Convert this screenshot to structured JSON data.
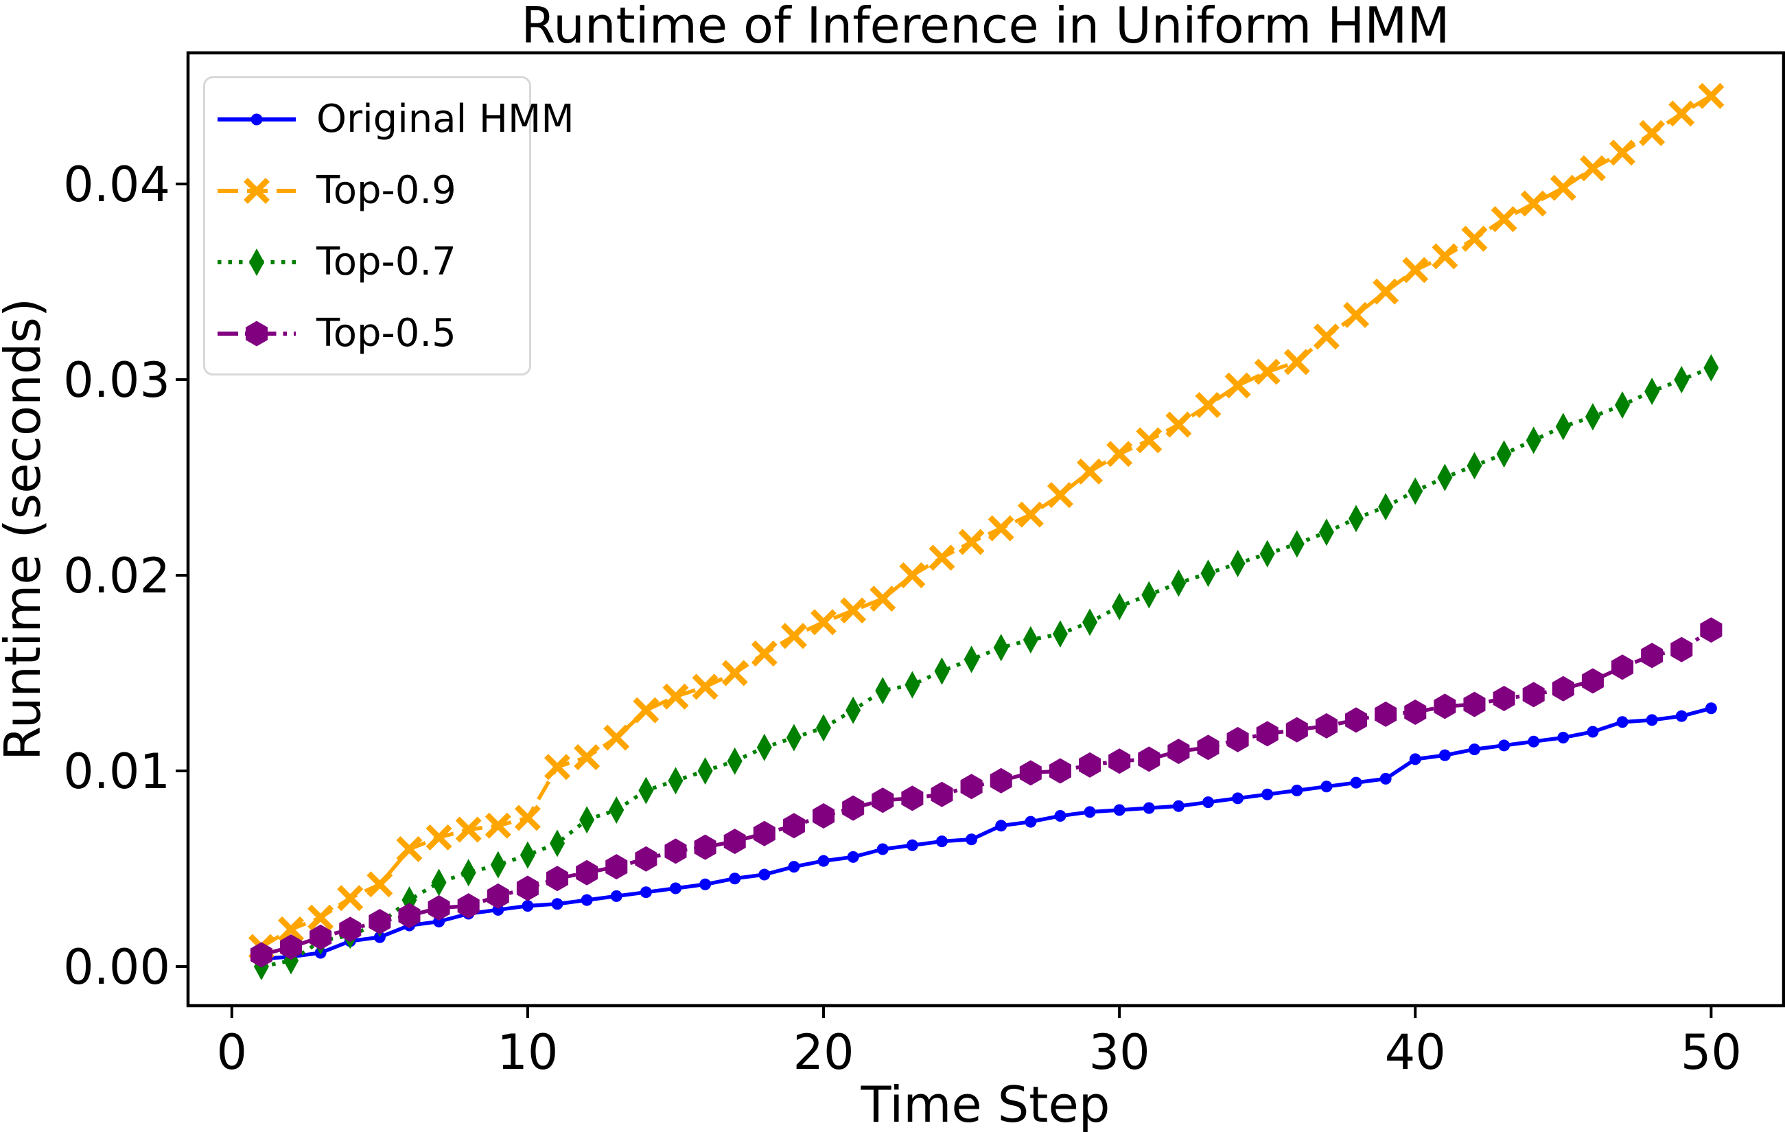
{
  "chart_data": {
    "type": "line",
    "title": "Runtime of Inference in Uniform HMM",
    "xlabel": "Time Step",
    "ylabel": "Runtime (seconds)",
    "xlim": [
      -1.48,
      52.45
    ],
    "ylim": [
      -0.002,
      0.0467
    ],
    "grid": false,
    "legend_position": "upper left",
    "xticks": [
      0,
      10,
      20,
      30,
      40,
      50
    ],
    "xtick_labels": [
      "0",
      "10",
      "20",
      "30",
      "40",
      "50"
    ],
    "yticks": [
      0.0,
      0.01,
      0.02,
      0.03,
      0.04
    ],
    "ytick_labels": [
      "0.00",
      "0.01",
      "0.02",
      "0.03",
      "0.04"
    ],
    "x": [
      1,
      2,
      3,
      4,
      5,
      6,
      7,
      8,
      9,
      10,
      11,
      12,
      13,
      14,
      15,
      16,
      17,
      18,
      19,
      20,
      21,
      22,
      23,
      24,
      25,
      26,
      27,
      28,
      29,
      30,
      31,
      32,
      33,
      34,
      35,
      36,
      37,
      38,
      39,
      40,
      41,
      42,
      43,
      44,
      45,
      46,
      47,
      48,
      49,
      50
    ],
    "series": [
      {
        "name": "Original HMM",
        "color": "#0000ff",
        "linestyle": "solid",
        "marker": "circle",
        "values": [
          0.0004,
          0.0005,
          0.0007,
          0.0013,
          0.0015,
          0.0021,
          0.0023,
          0.0027,
          0.0029,
          0.0031,
          0.0032,
          0.0034,
          0.0036,
          0.0038,
          0.004,
          0.0042,
          0.0045,
          0.0047,
          0.0051,
          0.0054,
          0.0056,
          0.006,
          0.0062,
          0.0064,
          0.0065,
          0.0072,
          0.0074,
          0.0077,
          0.0079,
          0.008,
          0.0081,
          0.0082,
          0.0084,
          0.0086,
          0.0088,
          0.009,
          0.0092,
          0.0094,
          0.0096,
          0.0106,
          0.0108,
          0.0111,
          0.0113,
          0.0115,
          0.0117,
          0.012,
          0.0125,
          0.0126,
          0.0128,
          0.0132
        ]
      },
      {
        "name": "Top-0.9",
        "color": "#ffa500",
        "linestyle": "dashed",
        "marker": "x",
        "values": [
          0.001,
          0.0019,
          0.0025,
          0.0035,
          0.0042,
          0.006,
          0.0066,
          0.007,
          0.0072,
          0.0076,
          0.0102,
          0.0107,
          0.0117,
          0.0131,
          0.0138,
          0.0143,
          0.015,
          0.016,
          0.0169,
          0.0176,
          0.0182,
          0.0188,
          0.02,
          0.0209,
          0.0217,
          0.0224,
          0.0231,
          0.0241,
          0.0253,
          0.0262,
          0.0269,
          0.0277,
          0.0287,
          0.0297,
          0.0304,
          0.0309,
          0.0322,
          0.0333,
          0.0345,
          0.0356,
          0.0363,
          0.0372,
          0.0382,
          0.039,
          0.0398,
          0.0408,
          0.0416,
          0.0426,
          0.0436,
          0.0445
        ]
      },
      {
        "name": "Top-0.7",
        "color": "#008000",
        "linestyle": "dotted",
        "marker": "thin-diamond",
        "values": [
          0.0,
          0.0003,
          0.0013,
          0.0016,
          0.0022,
          0.0034,
          0.0043,
          0.0048,
          0.0052,
          0.0057,
          0.0063,
          0.0075,
          0.008,
          0.009,
          0.0095,
          0.01,
          0.0105,
          0.0112,
          0.0117,
          0.0122,
          0.0131,
          0.0141,
          0.0144,
          0.0151,
          0.0157,
          0.0163,
          0.0167,
          0.017,
          0.0176,
          0.0184,
          0.019,
          0.0196,
          0.0201,
          0.0206,
          0.0211,
          0.0216,
          0.0222,
          0.0229,
          0.0235,
          0.0243,
          0.025,
          0.0256,
          0.0262,
          0.0269,
          0.0276,
          0.0281,
          0.0287,
          0.0294,
          0.03,
          0.0306
        ]
      },
      {
        "name": "Top-0.5",
        "color": "#800080",
        "linestyle": "dashdot",
        "marker": "hexagon",
        "values": [
          0.0006,
          0.001,
          0.0015,
          0.0019,
          0.0023,
          0.0026,
          0.003,
          0.0031,
          0.0036,
          0.004,
          0.0045,
          0.0048,
          0.0051,
          0.0055,
          0.0059,
          0.0061,
          0.0064,
          0.0068,
          0.0072,
          0.0077,
          0.0081,
          0.0085,
          0.0086,
          0.0088,
          0.0092,
          0.0095,
          0.0099,
          0.01,
          0.0103,
          0.0105,
          0.0106,
          0.011,
          0.0112,
          0.0116,
          0.0119,
          0.0121,
          0.0123,
          0.0126,
          0.0129,
          0.013,
          0.0133,
          0.0134,
          0.0137,
          0.0139,
          0.0142,
          0.0146,
          0.0153,
          0.0159,
          0.0162,
          0.0172
        ]
      }
    ]
  }
}
